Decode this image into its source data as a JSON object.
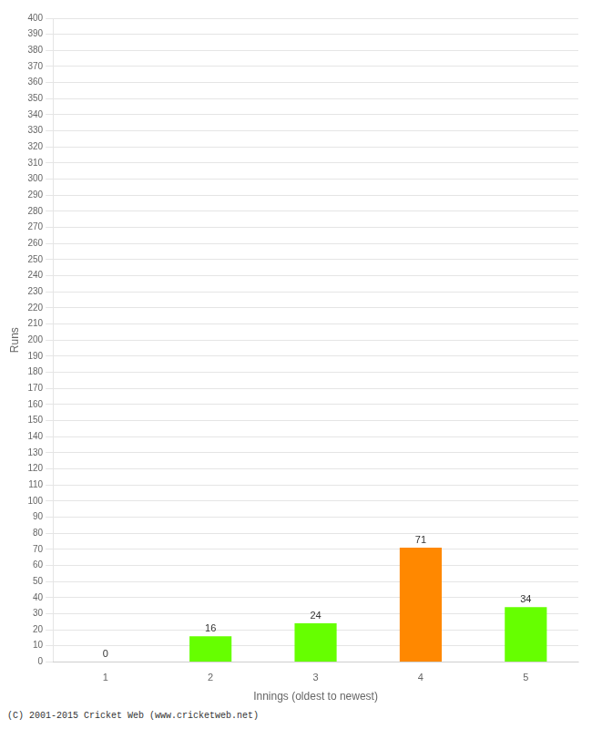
{
  "chart_data": {
    "type": "bar",
    "xlabel": "Innings (oldest to newest)",
    "ylabel": "Runs",
    "categories": [
      "1",
      "2",
      "3",
      "4",
      "5"
    ],
    "values": [
      0,
      16,
      24,
      71,
      34
    ],
    "colors": [
      "#66ff00",
      "#66ff00",
      "#66ff00",
      "#ff8800",
      "#66ff00"
    ],
    "ylim": [
      0,
      400
    ],
    "yticks": [
      0,
      10,
      20,
      30,
      40,
      50,
      60,
      70,
      80,
      90,
      100,
      110,
      120,
      130,
      140,
      150,
      160,
      170,
      180,
      190,
      200,
      210,
      220,
      230,
      240,
      250,
      260,
      270,
      280,
      290,
      300,
      310,
      320,
      330,
      340,
      350,
      360,
      370,
      380,
      390,
      400
    ],
    "grid": true,
    "data_labels": true,
    "annotations": [
      "(C) 2001-2015 Cricket Web (www.cricketweb.net)"
    ]
  }
}
